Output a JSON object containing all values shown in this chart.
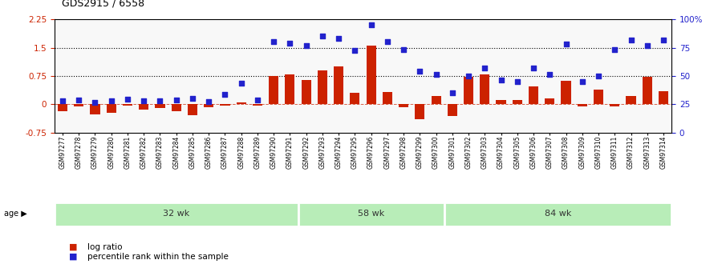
{
  "title": "GDS2915 / 6558",
  "samples": [
    "GSM97277",
    "GSM97278",
    "GSM97279",
    "GSM97280",
    "GSM97281",
    "GSM97282",
    "GSM97283",
    "GSM97284",
    "GSM97285",
    "GSM97286",
    "GSM97287",
    "GSM97288",
    "GSM97289",
    "GSM97290",
    "GSM97291",
    "GSM97292",
    "GSM97293",
    "GSM97294",
    "GSM97295",
    "GSM97296",
    "GSM97297",
    "GSM97298",
    "GSM97299",
    "GSM97300",
    "GSM97301",
    "GSM97302",
    "GSM97303",
    "GSM97304",
    "GSM97305",
    "GSM97306",
    "GSM97307",
    "GSM97308",
    "GSM97309",
    "GSM97310",
    "GSM97311",
    "GSM97312",
    "GSM97313",
    "GSM97314"
  ],
  "log_ratio": [
    -0.18,
    -0.05,
    -0.28,
    -0.22,
    -0.03,
    -0.14,
    -0.1,
    -0.19,
    -0.3,
    -0.08,
    -0.04,
    0.05,
    -0.04,
    0.75,
    0.8,
    0.65,
    0.9,
    1.0,
    0.3,
    1.55,
    0.32,
    -0.08,
    -0.4,
    0.22,
    -0.32,
    0.72,
    0.78,
    0.12,
    0.12,
    0.48,
    0.15,
    0.62,
    -0.05,
    0.38,
    -0.05,
    0.22,
    0.72,
    0.35
  ],
  "percentile": [
    0.08,
    0.12,
    0.05,
    0.09,
    0.14,
    0.1,
    0.08,
    0.11,
    0.16,
    0.06,
    0.27,
    0.55,
    0.11,
    1.65,
    1.62,
    1.55,
    1.8,
    1.75,
    1.42,
    2.1,
    1.65,
    1.45,
    0.88,
    0.8,
    0.3,
    0.75,
    0.95,
    0.65,
    0.6,
    0.95,
    0.8,
    1.6,
    0.6,
    0.75,
    1.45,
    1.7,
    1.55,
    1.7
  ],
  "groups": [
    {
      "label": "32 wk",
      "start": 0,
      "end": 15
    },
    {
      "label": "58 wk",
      "start": 15,
      "end": 24
    },
    {
      "label": "84 wk",
      "start": 24,
      "end": 38
    }
  ],
  "ylim_left": [
    -0.75,
    2.25
  ],
  "ylim_right": [
    0,
    100
  ],
  "yticks_left": [
    -0.75,
    0,
    0.75,
    1.5,
    2.25
  ],
  "yticks_right": [
    0,
    25,
    50,
    75,
    100
  ],
  "hlines": [
    0.75,
    1.5
  ],
  "bar_color": "#CC2200",
  "dot_color": "#2222CC",
  "bar_width": 0.6,
  "legend_items": [
    {
      "color": "#CC2200",
      "label": "log ratio"
    },
    {
      "color": "#2222CC",
      "label": "percentile rank within the sample"
    }
  ],
  "age_label": "age",
  "background_color": "#ffffff",
  "plot_bg": "#f8f8f8",
  "green_light": "#aaddaa",
  "green_dark": "#55cc55"
}
